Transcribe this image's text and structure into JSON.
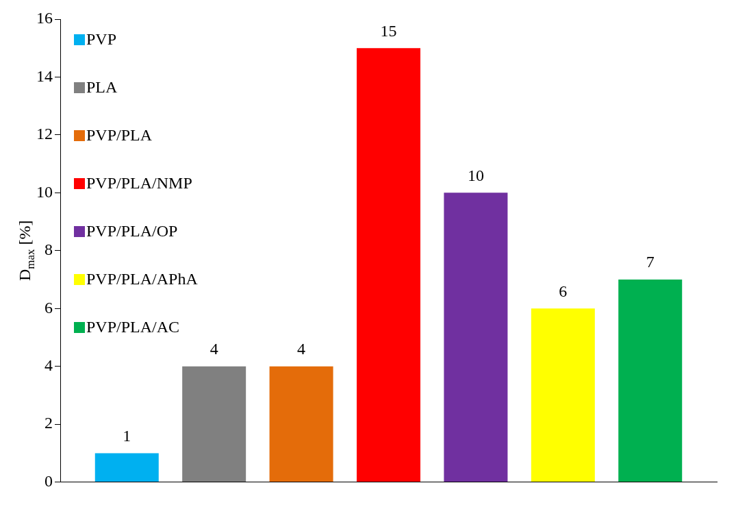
{
  "chart_data": {
    "type": "bar",
    "categories": [
      null
    ],
    "ylabel": "D$_{max}$ [%]",
    "ylim": [
      0,
      16
    ],
    "yticks": [
      0,
      2,
      4,
      6,
      8,
      10,
      12,
      14,
      16
    ],
    "grid": false,
    "legend": "top left",
    "data_labels": true,
    "series": [
      {
        "name": "PVP",
        "color": "#00b0f0",
        "values": [
          1
        ]
      },
      {
        "name": "PLA",
        "color": "#808080",
        "values": [
          4
        ]
      },
      {
        "name": "PVP/PLA",
        "color": "#e46c0a",
        "values": [
          4
        ]
      },
      {
        "name": "PVP/PLA/NMP",
        "color": "#ff0000",
        "values": [
          15
        ]
      },
      {
        "name": "PVP/PLA/OP",
        "color": "#7030a0",
        "values": [
          10
        ]
      },
      {
        "name": "PVP/PLA/APhA",
        "color": "#ffff00",
        "values": [
          6
        ]
      },
      {
        "name": "PVP/PLA/AC",
        "color": "#00b050",
        "values": [
          7
        ]
      }
    ]
  }
}
